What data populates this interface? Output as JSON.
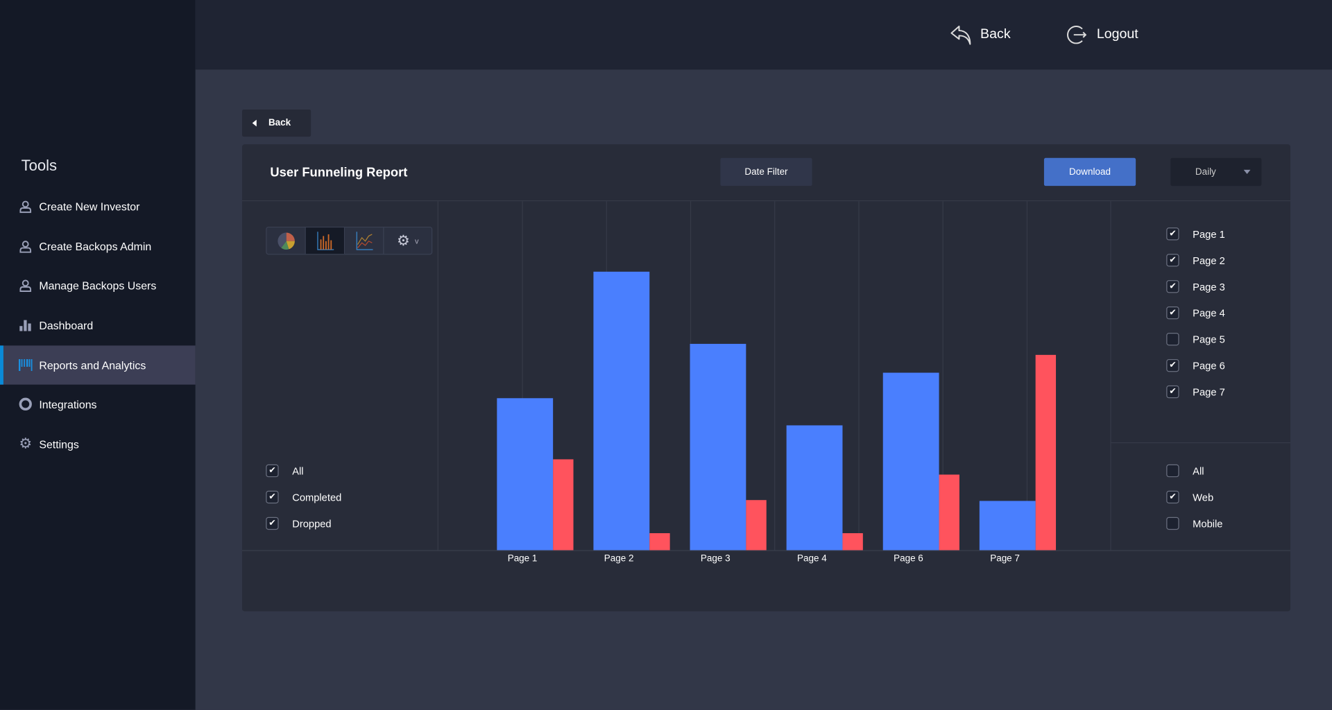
{
  "sidebar": {
    "title": "Tools",
    "items": [
      {
        "label": "Create New Investor",
        "icon": "user-icon"
      },
      {
        "label": "Create Backops Admin",
        "icon": "user-icon"
      },
      {
        "label": "Manage Backops Users",
        "icon": "user-icon"
      },
      {
        "label": "Dashboard",
        "icon": "bar-chart-icon"
      },
      {
        "label": "Reports and Analytics",
        "icon": "barcode-icon",
        "active": true
      },
      {
        "label": "Integrations",
        "icon": "lifebuoy-icon"
      },
      {
        "label": "Settings",
        "icon": "gear-icon"
      }
    ]
  },
  "topbar": {
    "back": "Back",
    "logout": "Logout"
  },
  "back_button": "Back",
  "report": {
    "title": "User Funneling Report",
    "date_filter": "Date Filter",
    "download": "Download",
    "period": "Daily"
  },
  "colors": {
    "completed": "#4a7ffe",
    "dropped": "#ff535d",
    "accent": "#4470c8"
  },
  "status_filters": [
    {
      "label": "All",
      "checked": true
    },
    {
      "label": "Completed",
      "checked": true
    },
    {
      "label": "Dropped",
      "checked": true
    }
  ],
  "page_filters": [
    {
      "label": "Page 1",
      "checked": true
    },
    {
      "label": "Page 2",
      "checked": true
    },
    {
      "label": "Page 3",
      "checked": true
    },
    {
      "label": "Page 4",
      "checked": true
    },
    {
      "label": "Page 5",
      "checked": false
    },
    {
      "label": "Page 6",
      "checked": true
    },
    {
      "label": "Page 7",
      "checked": true
    }
  ],
  "platform_filters": [
    {
      "label": "All",
      "checked": false
    },
    {
      "label": "Web",
      "checked": true
    },
    {
      "label": "Mobile",
      "checked": false
    }
  ],
  "chart_data": {
    "type": "bar",
    "categories": [
      "Page 1",
      "Page 2",
      "Page 3",
      "Page 4",
      "Page 6",
      "Page 7"
    ],
    "series": [
      {
        "name": "Completed",
        "values": [
          179,
          328,
          243,
          147,
          209,
          58
        ]
      },
      {
        "name": "Dropped",
        "values": [
          107,
          20,
          59,
          20,
          89,
          230
        ]
      }
    ],
    "ylim": [
      0,
      411
    ],
    "grid": true
  }
}
